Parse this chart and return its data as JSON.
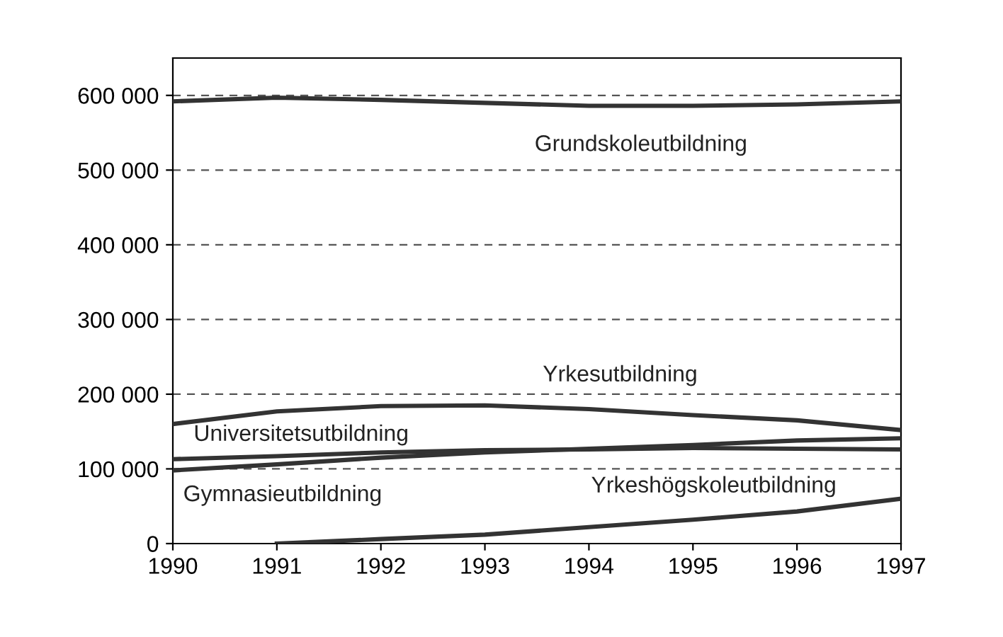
{
  "chart_data": {
    "type": "line",
    "x": [
      1990,
      1991,
      1992,
      1993,
      1994,
      1995,
      1996,
      1997
    ],
    "series": [
      {
        "name": "Grundskoleutbildning",
        "color": "#333333",
        "values": [
          592000,
          597000,
          594000,
          590000,
          586000,
          586000,
          588000,
          592000
        ]
      },
      {
        "name": "Yrkesutbildning",
        "color": "#333333",
        "values": [
          160000,
          177000,
          184000,
          185000,
          180000,
          172000,
          165000,
          152000
        ]
      },
      {
        "name": "Universitetsutbildning",
        "color": "#333333",
        "values": [
          113000,
          117000,
          122000,
          125000,
          126000,
          128000,
          127000,
          126000
        ]
      },
      {
        "name": "Gymnasieutbildning",
        "color": "#333333",
        "values": [
          98000,
          106000,
          115000,
          122000,
          127000,
          132000,
          138000,
          141000
        ]
      },
      {
        "name": "Yrkeshögskoleutbildning",
        "color": "#333333",
        "values": [
          null,
          0,
          6000,
          12000,
          22000,
          32000,
          43000,
          60000
        ]
      }
    ],
    "xlim": [
      1990,
      1997
    ],
    "xticks": [
      1990,
      1991,
      1992,
      1993,
      1994,
      1995,
      1996,
      1997
    ],
    "ylim": [
      0,
      650000
    ],
    "yticks": [
      {
        "value": 0,
        "label": "0"
      },
      {
        "value": 100000,
        "label": "100 000"
      },
      {
        "value": 200000,
        "label": "200 000"
      },
      {
        "value": 300000,
        "label": "300 000"
      },
      {
        "value": 400000,
        "label": "400 000"
      },
      {
        "value": 500000,
        "label": "500 000"
      },
      {
        "value": 600000,
        "label": "600 000"
      }
    ],
    "grid": "y",
    "legend": false,
    "marker": "none",
    "line_style": "solid"
  }
}
